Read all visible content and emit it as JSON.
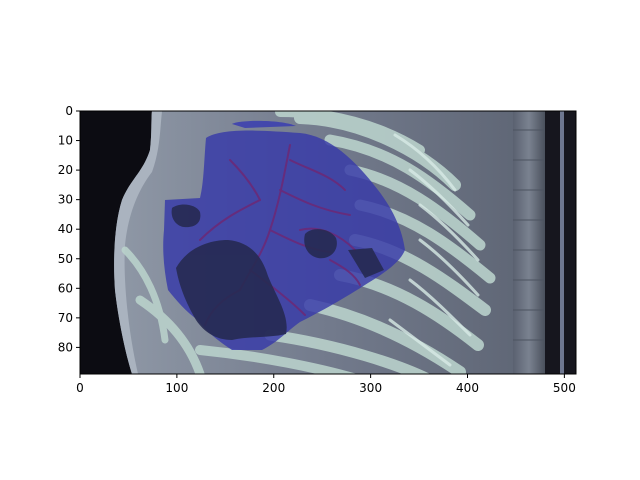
{
  "figure": {
    "x_ticks": [
      {
        "value": 0,
        "label": "0"
      },
      {
        "value": 100,
        "label": "100"
      },
      {
        "value": 200,
        "label": "200"
      },
      {
        "value": 300,
        "label": "300"
      },
      {
        "value": 400,
        "label": "400"
      },
      {
        "value": 500,
        "label": "500"
      }
    ],
    "y_ticks": [
      {
        "value": 0,
        "label": "0"
      },
      {
        "value": 10,
        "label": "10"
      },
      {
        "value": 20,
        "label": "20"
      },
      {
        "value": 30,
        "label": "30"
      },
      {
        "value": 40,
        "label": "40"
      },
      {
        "value": 50,
        "label": "50"
      },
      {
        "value": 60,
        "label": "60"
      },
      {
        "value": 70,
        "label": "70"
      },
      {
        "value": 80,
        "label": "80"
      }
    ],
    "x_range": [
      0,
      512
    ],
    "y_range": [
      0,
      89
    ],
    "image_content": "sagittal-ct-slice-with-blue-lung-mask-overlay",
    "colors": {
      "mask": "#3a3db0",
      "vessels": "#6a2a78",
      "bone": "#b7cfc9",
      "soft_tissue": "#6f7585",
      "background": "#0d0d14"
    }
  }
}
